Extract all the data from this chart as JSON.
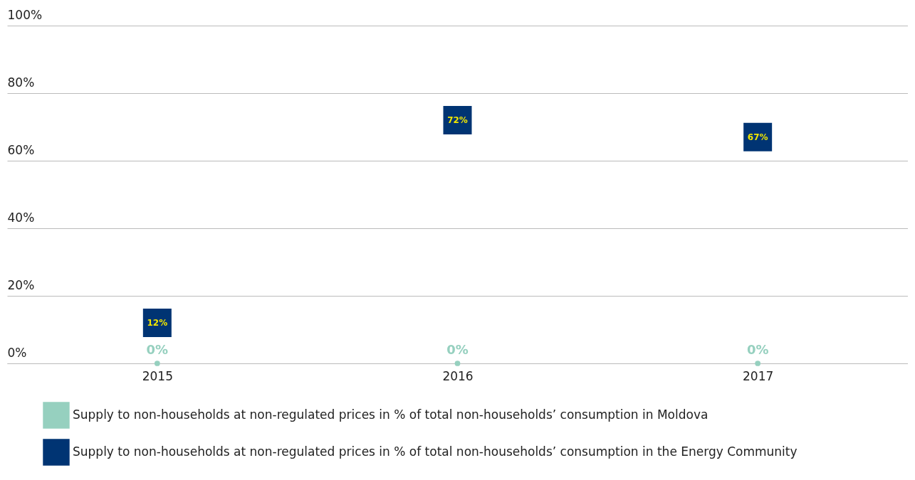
{
  "chart_data": {
    "type": "scatter",
    "categories": [
      "2015",
      "2016",
      "2017"
    ],
    "series": [
      {
        "name": "Supply to non-households at non-regulated prices in % of total non-households’ consumption in Moldova",
        "color": "#96d0bf",
        "values": [
          0,
          0,
          0
        ],
        "value_labels": [
          "0%",
          "0%",
          "0%"
        ],
        "marker": "circle"
      },
      {
        "name": "Supply to non-households at non-regulated prices in % of total non-households’ consumption in the Energy Community",
        "color": "#003473",
        "values": [
          12,
          72,
          67
        ],
        "value_labels": [
          "12%",
          "72%",
          "67%"
        ],
        "marker": "square"
      }
    ],
    "ylim": [
      0,
      100
    ],
    "yticks": [
      {
        "value": 0,
        "label": "0%"
      },
      {
        "value": 20,
        "label": "20%"
      },
      {
        "value": 40,
        "label": "40%"
      },
      {
        "value": 60,
        "label": "60%"
      },
      {
        "value": 80,
        "label": "80%"
      },
      {
        "value": 100,
        "label": "100%"
      }
    ],
    "grid": "y",
    "legend": "bottom"
  }
}
